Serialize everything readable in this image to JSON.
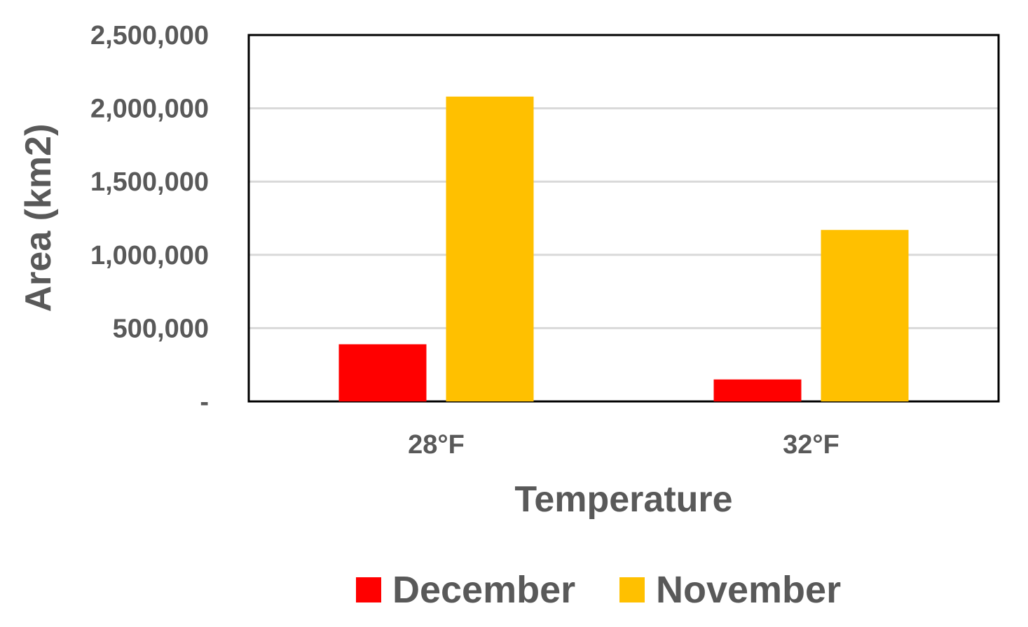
{
  "chart_data": {
    "type": "bar",
    "xlabel": "Temperature",
    "ylabel": "Area (km2)",
    "categories": [
      "28°F",
      "32°F"
    ],
    "series": [
      {
        "name": "December",
        "values": [
          390000,
          150000
        ],
        "color": "#ff0000"
      },
      {
        "name": "November",
        "values": [
          2080000,
          1170000
        ],
        "color": "#ffc000"
      }
    ],
    "ylim": [
      0,
      2500000
    ],
    "yticks": [
      0,
      500000,
      1000000,
      1500000,
      2000000,
      2500000
    ],
    "ytick_labels": [
      "-",
      "500,000",
      "1,000,000",
      "1,500,000",
      "2,000,000",
      "2,500,000"
    ],
    "grid": true,
    "legend_position": "bottom"
  }
}
